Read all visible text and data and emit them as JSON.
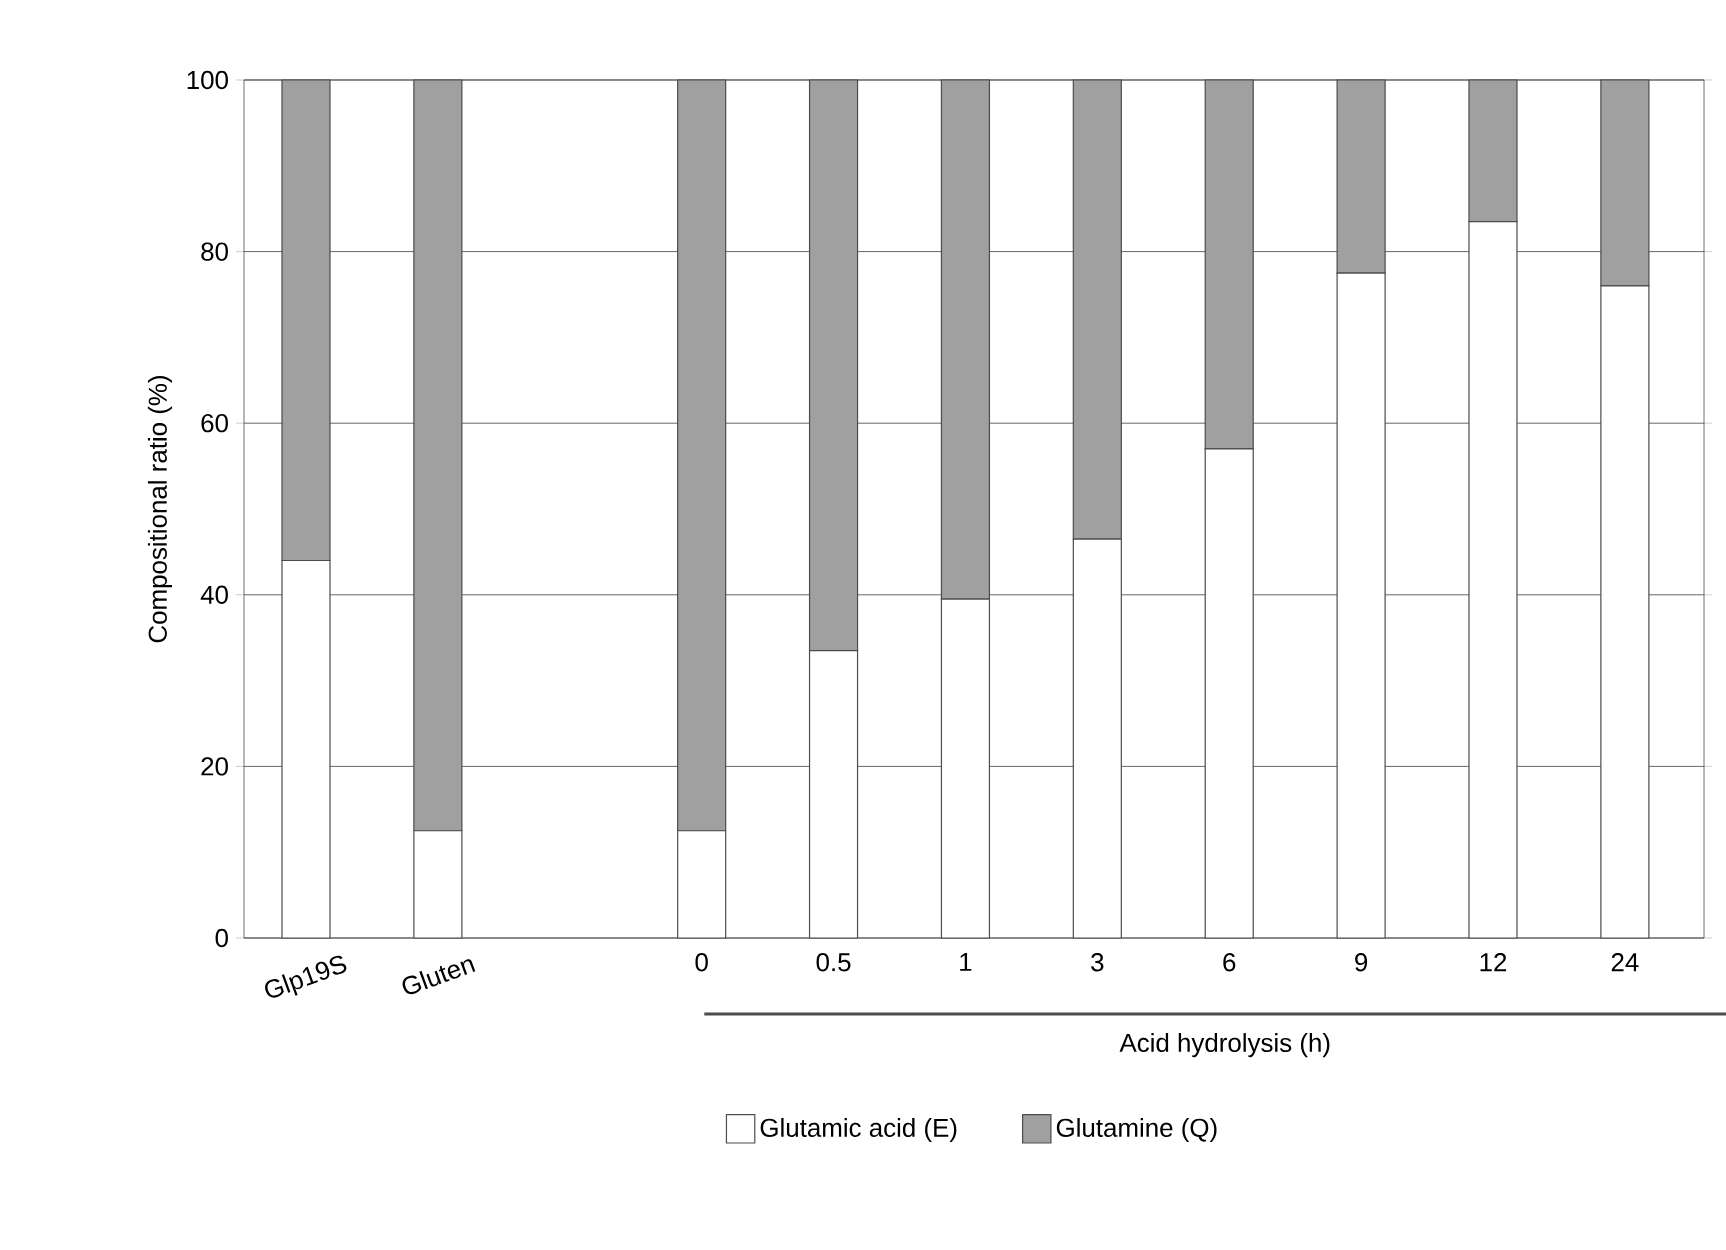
{
  "chart_data": {
    "type": "bar",
    "stacked": true,
    "xlabel": "Acid hydrolysis (h)",
    "ylabel": "Compositional ratio (%)",
    "categories": [
      "Glp19S",
      "Gluten",
      null,
      "0",
      "0.5",
      "1",
      "3",
      "6",
      "9",
      "12",
      "24"
    ],
    "series": [
      {
        "name": "Glutamic acid (E)",
        "color": "#ffffff",
        "values": [
          44,
          12.5,
          null,
          12.5,
          33.5,
          39.5,
          46.5,
          57,
          77.5,
          83.5,
          76
        ]
      },
      {
        "name": "Glutamine (Q)",
        "color": "#a0a0a0",
        "values": [
          56,
          87.5,
          null,
          87.5,
          66.5,
          60.5,
          53.5,
          43,
          22.5,
          16.5,
          24
        ]
      }
    ],
    "ylim": [
      0,
      100
    ],
    "yticks": [
      0,
      20,
      40,
      60,
      80,
      100
    ],
    "grid": "y",
    "legend": "bottom"
  }
}
